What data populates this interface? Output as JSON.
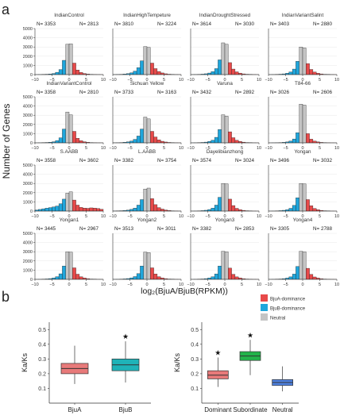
{
  "panel_labels": {
    "a": "a",
    "b": "b"
  },
  "panel_a": {
    "ylabel": "Number of Genes",
    "xlabel": "log₂(BjuA/BjuB(RPKM))",
    "yticks": [
      "0",
      "1000",
      "2000",
      "3000",
      "4000",
      "5000"
    ],
    "xticks": [
      "−10",
      "−5",
      "0",
      "5",
      "10"
    ]
  },
  "legend": {
    "items": [
      {
        "label": "BjuA-dominance",
        "color": "#e84a4a"
      },
      {
        "label": "BjuB-dominance",
        "color": "#1fa6dc"
      },
      {
        "label": "Neutral",
        "color": "#c4c4c4"
      }
    ]
  },
  "chart_data": [
    {
      "type": "bar",
      "title": "IndianControl",
      "n_left": "N= 3353",
      "n_right": "N= 2813",
      "x": [
        -9.5,
        -8.5,
        -7.5,
        -6.5,
        -5.5,
        -4.5,
        -3.5,
        -2.5,
        -1.5,
        -0.5,
        0.5,
        1.5,
        2.5,
        3.5,
        4.5,
        5.5,
        6.5,
        7.5,
        8.5,
        9.5
      ],
      "values": [
        5,
        10,
        20,
        40,
        70,
        120,
        250,
        550,
        1550,
        3300,
        3350,
        1250,
        500,
        230,
        120,
        60,
        30,
        15,
        8,
        5
      ]
    },
    {
      "type": "bar",
      "title": "IndianHighTempeture",
      "n_left": "N= 3810",
      "n_right": "N= 3224",
      "x": [
        -9.5,
        -8.5,
        -7.5,
        -6.5,
        -5.5,
        -4.5,
        -3.5,
        -2.5,
        -1.5,
        -0.5,
        0.5,
        1.5,
        2.5,
        3.5,
        4.5,
        5.5,
        6.5,
        7.5,
        8.5,
        9.5
      ],
      "values": [
        10,
        15,
        30,
        60,
        110,
        200,
        380,
        750,
        1500,
        3050,
        2950,
        1250,
        650,
        340,
        180,
        90,
        45,
        20,
        10,
        6
      ]
    },
    {
      "type": "bar",
      "title": "IndianDroughtStressed",
      "n_left": "N= 3614",
      "n_right": "N= 3030",
      "x": [
        -9.5,
        -8.5,
        -7.5,
        -6.5,
        -5.5,
        -4.5,
        -3.5,
        -2.5,
        -1.5,
        -0.5,
        0.5,
        1.5,
        2.5,
        3.5,
        4.5,
        5.5,
        6.5,
        7.5,
        8.5,
        9.5
      ],
      "values": [
        8,
        12,
        25,
        50,
        90,
        170,
        320,
        650,
        1600,
        3450,
        3300,
        1300,
        600,
        300,
        160,
        80,
        40,
        18,
        9,
        5
      ]
    },
    {
      "type": "bar",
      "title": "IndianVariantSalint",
      "n_left": "N= 3403",
      "n_right": "N= 2880",
      "x": [
        -9.5,
        -8.5,
        -7.5,
        -6.5,
        -5.5,
        -4.5,
        -3.5,
        -2.5,
        -1.5,
        -0.5,
        0.5,
        1.5,
        2.5,
        3.5,
        4.5,
        5.5,
        6.5,
        7.5,
        8.5,
        9.5
      ],
      "values": [
        6,
        10,
        20,
        45,
        80,
        150,
        290,
        600,
        1450,
        3000,
        2900,
        1200,
        560,
        280,
        150,
        75,
        35,
        16,
        8,
        5
      ]
    },
    {
      "type": "bar",
      "title": "IndianVariantControl",
      "n_left": "N= 3358",
      "n_right": "N= 2810",
      "x": [
        -9.5,
        -8.5,
        -7.5,
        -6.5,
        -5.5,
        -4.5,
        -3.5,
        -2.5,
        -1.5,
        -0.5,
        0.5,
        1.5,
        2.5,
        3.5,
        4.5,
        5.5,
        6.5,
        7.5,
        8.5,
        9.5
      ],
      "values": [
        5,
        10,
        20,
        40,
        70,
        120,
        250,
        550,
        1500,
        3350,
        3050,
        1250,
        500,
        230,
        120,
        60,
        30,
        15,
        8,
        5
      ]
    },
    {
      "type": "bar",
      "title": "Sichuan Yellow",
      "n_left": "N= 3733",
      "n_right": "N= 3163",
      "x": [
        -9.5,
        -8.5,
        -7.5,
        -6.5,
        -5.5,
        -4.5,
        -3.5,
        -2.5,
        -1.5,
        -0.5,
        0.5,
        1.5,
        2.5,
        3.5,
        4.5,
        5.5,
        6.5,
        7.5,
        8.5,
        9.5
      ],
      "values": [
        10,
        15,
        30,
        60,
        110,
        200,
        380,
        740,
        1500,
        2800,
        2600,
        1250,
        640,
        330,
        170,
        90,
        45,
        20,
        10,
        6
      ]
    },
    {
      "type": "bar",
      "title": "Varuna",
      "n_left": "N= 3432",
      "n_right": "N= 2892",
      "x": [
        -9.5,
        -8.5,
        -7.5,
        -6.5,
        -5.5,
        -4.5,
        -3.5,
        -2.5,
        -1.5,
        -0.5,
        0.5,
        1.5,
        2.5,
        3.5,
        4.5,
        5.5,
        6.5,
        7.5,
        8.5,
        9.5
      ],
      "values": [
        6,
        10,
        20,
        45,
        80,
        150,
        290,
        600,
        1450,
        3050,
        2900,
        1200,
        560,
        280,
        150,
        75,
        35,
        16,
        8,
        5
      ]
    },
    {
      "type": "bar",
      "title": "T84-66",
      "n_left": "N= 3026",
      "n_right": "N= 2606",
      "x": [
        -9.5,
        -8.5,
        -7.5,
        -6.5,
        -5.5,
        -4.5,
        -3.5,
        -2.5,
        -1.5,
        -0.5,
        0.5,
        1.5,
        2.5,
        3.5,
        4.5,
        5.5,
        6.5,
        7.5,
        8.5,
        9.5
      ],
      "values": [
        4,
        8,
        15,
        30,
        55,
        100,
        200,
        420,
        1100,
        4200,
        4100,
        1000,
        400,
        190,
        100,
        50,
        25,
        12,
        6,
        4
      ]
    },
    {
      "type": "bar",
      "title": "S.AABB",
      "n_left": "N= 3558",
      "n_right": "N= 3602",
      "x": [
        -9.5,
        -8.5,
        -7.5,
        -6.5,
        -5.5,
        -4.5,
        -3.5,
        -2.5,
        -1.5,
        -0.5,
        0.5,
        1.5,
        2.5,
        3.5,
        4.5,
        5.5,
        6.5,
        7.5,
        8.5,
        9.5
      ],
      "values": [
        120,
        180,
        250,
        320,
        380,
        450,
        550,
        800,
        1300,
        1950,
        2100,
        1200,
        650,
        400,
        330,
        300,
        350,
        330,
        280,
        200
      ]
    },
    {
      "type": "bar",
      "title": "L.AABB",
      "n_left": "N= 3382",
      "n_right": "N= 3754",
      "x": [
        -9.5,
        -8.5,
        -7.5,
        -6.5,
        -5.5,
        -4.5,
        -3.5,
        -2.5,
        -1.5,
        -0.5,
        0.5,
        1.5,
        2.5,
        3.5,
        4.5,
        5.5,
        6.5,
        7.5,
        8.5,
        9.5
      ],
      "values": [
        15,
        25,
        40,
        70,
        110,
        190,
        330,
        650,
        1250,
        2400,
        2500,
        1350,
        700,
        380,
        220,
        120,
        60,
        30,
        15,
        8
      ]
    },
    {
      "type": "bar",
      "title": "Dayelibianzhong",
      "n_left": "N= 3574",
      "n_right": "N= 3024",
      "x": [
        -9.5,
        -8.5,
        -7.5,
        -6.5,
        -5.5,
        -4.5,
        -3.5,
        -2.5,
        -1.5,
        -0.5,
        0.5,
        1.5,
        2.5,
        3.5,
        4.5,
        5.5,
        6.5,
        7.5,
        8.5,
        9.5
      ],
      "values": [
        8,
        12,
        25,
        50,
        90,
        170,
        320,
        650,
        1500,
        3000,
        2950,
        1300,
        600,
        300,
        160,
        80,
        40,
        18,
        9,
        5
      ]
    },
    {
      "type": "bar",
      "title": "Yongan",
      "n_left": "N= 3496",
      "n_right": "N= 3032",
      "x": [
        -9.5,
        -8.5,
        -7.5,
        -6.5,
        -5.5,
        -4.5,
        -3.5,
        -2.5,
        -1.5,
        -0.5,
        0.5,
        1.5,
        2.5,
        3.5,
        4.5,
        5.5,
        6.5,
        7.5,
        8.5,
        9.5
      ],
      "values": [
        7,
        11,
        22,
        48,
        85,
        160,
        300,
        620,
        1450,
        3000,
        2950,
        1250,
        580,
        290,
        155,
        78,
        38,
        17,
        8,
        5
      ]
    },
    {
      "type": "bar",
      "title": "Yongan1",
      "n_left": "N= 3445",
      "n_right": "N= 2967",
      "x": [
        -9.5,
        -8.5,
        -7.5,
        -6.5,
        -5.5,
        -4.5,
        -3.5,
        -2.5,
        -1.5,
        -0.5,
        0.5,
        1.5,
        2.5,
        3.5,
        4.5,
        5.5,
        6.5,
        7.5,
        8.5,
        9.5
      ],
      "values": [
        6,
        10,
        20,
        45,
        80,
        150,
        290,
        600,
        1450,
        3000,
        2950,
        1250,
        560,
        280,
        150,
        75,
        35,
        16,
        8,
        5
      ]
    },
    {
      "type": "bar",
      "title": "Yongan2",
      "n_left": "N= 3513",
      "n_right": "N= 3011",
      "x": [
        -9.5,
        -8.5,
        -7.5,
        -6.5,
        -5.5,
        -4.5,
        -3.5,
        -2.5,
        -1.5,
        -0.5,
        0.5,
        1.5,
        2.5,
        3.5,
        4.5,
        5.5,
        6.5,
        7.5,
        8.5,
        9.5
      ],
      "values": [
        7,
        11,
        22,
        48,
        85,
        160,
        300,
        620,
        1450,
        2950,
        2900,
        1250,
        580,
        290,
        155,
        78,
        38,
        17,
        8,
        5
      ]
    },
    {
      "type": "bar",
      "title": "Yongan3",
      "n_left": "N= 3382",
      "n_right": "N= 2853",
      "x": [
        -9.5,
        -8.5,
        -7.5,
        -6.5,
        -5.5,
        -4.5,
        -3.5,
        -2.5,
        -1.5,
        -0.5,
        0.5,
        1.5,
        2.5,
        3.5,
        4.5,
        5.5,
        6.5,
        7.5,
        8.5,
        9.5
      ],
      "values": [
        6,
        10,
        20,
        42,
        78,
        145,
        280,
        590,
        1450,
        3050,
        3000,
        1220,
        550,
        270,
        145,
        72,
        34,
        15,
        8,
        5
      ]
    },
    {
      "type": "bar",
      "title": "Yongan4",
      "n_left": "N= 3305",
      "n_right": "N= 2788",
      "x": [
        -9.5,
        -8.5,
        -7.5,
        -6.5,
        -5.5,
        -4.5,
        -3.5,
        -2.5,
        -1.5,
        -0.5,
        0.5,
        1.5,
        2.5,
        3.5,
        4.5,
        5.5,
        6.5,
        7.5,
        8.5,
        9.5
      ],
      "values": [
        5,
        10,
        20,
        40,
        75,
        140,
        270,
        570,
        1400,
        3050,
        3000,
        1200,
        540,
        260,
        140,
        70,
        32,
        15,
        8,
        5
      ]
    },
    {
      "type": "box",
      "ylabel": "Ka/Ks",
      "ylim": [
        0,
        0.55
      ],
      "yticks": [
        "0.1",
        "0.2",
        "0.3",
        "0.4",
        "0.5"
      ],
      "categories": [
        "BjuA",
        "BjuB"
      ],
      "boxes": [
        {
          "category": "BjuA",
          "color": "#e87a7a",
          "min": 0.13,
          "q1": 0.2,
          "median": 0.235,
          "q3": 0.27,
          "max": 0.39,
          "star": false
        },
        {
          "category": "BjuB",
          "color": "#1fb3b8",
          "min": 0.14,
          "q1": 0.22,
          "median": 0.26,
          "q3": 0.3,
          "max": 0.42,
          "star": true
        }
      ],
      "star_symbol": "★"
    },
    {
      "type": "box",
      "ylabel": "Ka/Ks",
      "ylim": [
        0,
        0.55
      ],
      "yticks": [
        "0.1",
        "0.2",
        "0.3",
        "0.4",
        "0.5"
      ],
      "categories": [
        "Dominant",
        "Subordinate",
        "Neutral"
      ],
      "boxes": [
        {
          "category": "Dominant",
          "color": "#e87a7a",
          "min": 0.11,
          "q1": 0.165,
          "median": 0.19,
          "q3": 0.22,
          "max": 0.31,
          "star": true
        },
        {
          "category": "Subordinate",
          "color": "#22b34a",
          "min": 0.19,
          "q1": 0.29,
          "median": 0.32,
          "q3": 0.35,
          "max": 0.43,
          "star": true
        },
        {
          "category": "Neutral",
          "color": "#4f82e0",
          "min": 0.08,
          "q1": 0.12,
          "median": 0.14,
          "q3": 0.16,
          "max": 0.25,
          "star": false
        }
      ],
      "star_symbol": "★"
    }
  ]
}
